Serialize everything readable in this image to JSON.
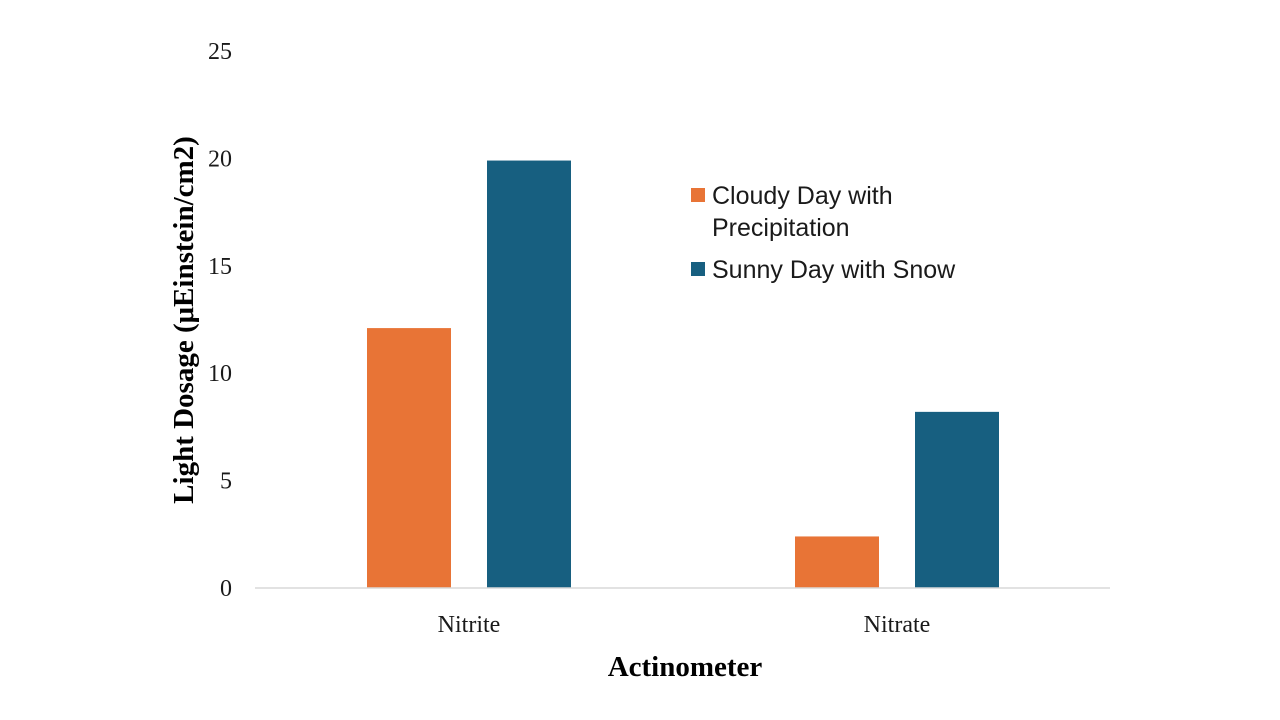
{
  "chart_data": {
    "type": "bar",
    "title": "",
    "xlabel": "Actinometer",
    "ylabel": "Light Dosage (μEinstein/cm2)",
    "categories": [
      "Nitrite",
      "Nitrate"
    ],
    "series": [
      {
        "name_lines": [
          "Cloudy Day with",
          "Precipitation"
        ],
        "color": "#E87436",
        "values": [
          12.1,
          2.4
        ]
      },
      {
        "name_lines": [
          "Sunny Day with Snow"
        ],
        "color": "#175F80",
        "values": [
          19.9,
          8.2
        ]
      }
    ],
    "ylim": [
      0,
      25
    ],
    "yticks": [
      "0",
      "5",
      "10",
      "15",
      "20",
      "25"
    ],
    "grid": false,
    "legend_position": "right"
  }
}
